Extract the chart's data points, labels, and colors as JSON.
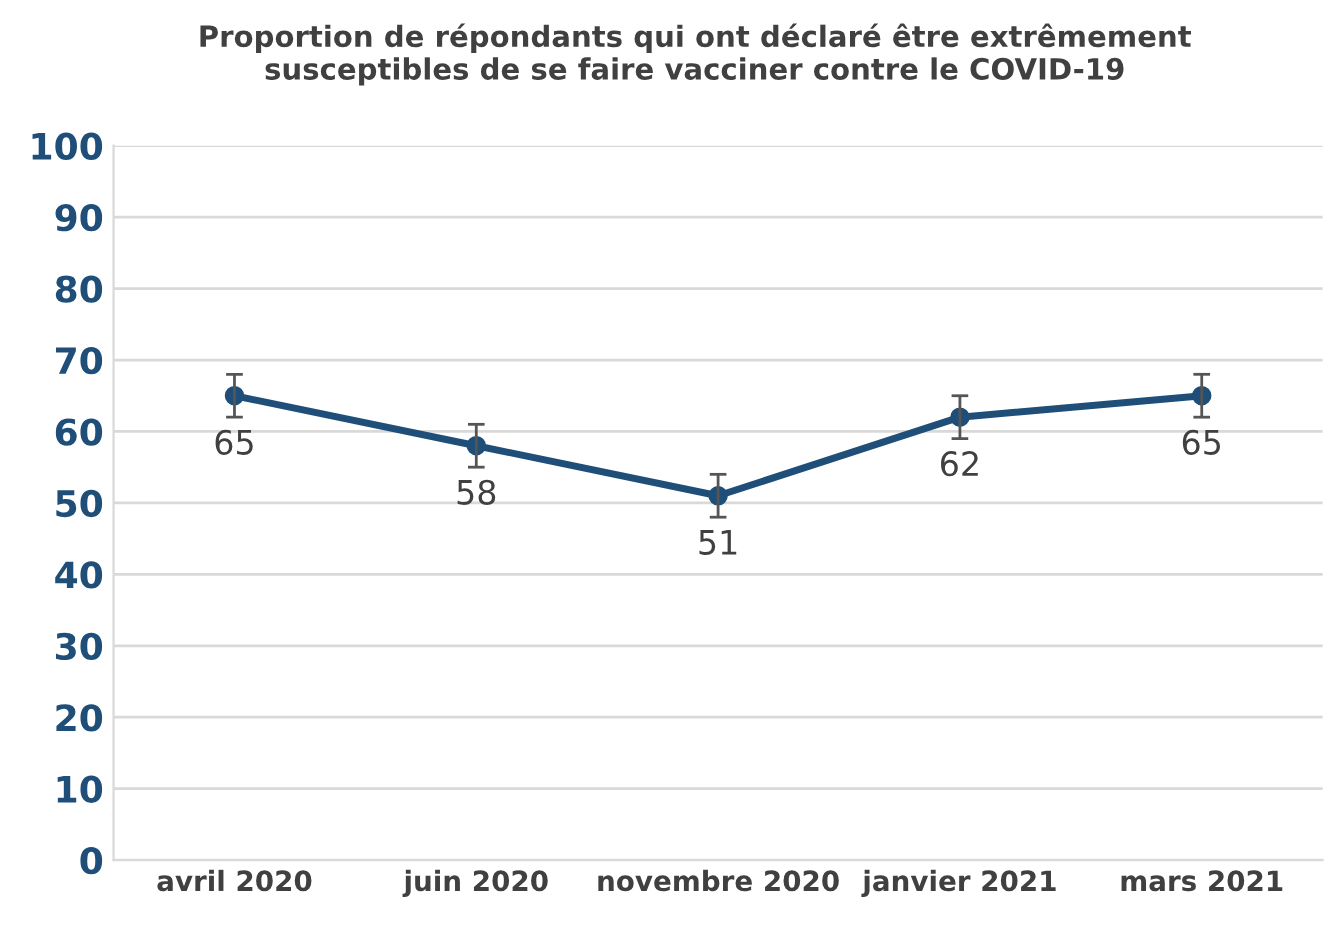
{
  "chart_data": {
    "type": "line",
    "title": "Proportion de répondants qui ont déclaré être extrêmement\nsusceptibles de se faire vacciner contre le COVID-19",
    "categories": [
      "avril 2020",
      "juin 2020",
      "novembre 2020",
      "janvier 2021",
      "mars 2021"
    ],
    "series": [
      {
        "color": "#1f4e79",
        "values": [
          65,
          58,
          51,
          62,
          65
        ],
        "errors": [
          3,
          3,
          3,
          3,
          3
        ]
      }
    ],
    "ylim": [
      0,
      100
    ],
    "yticks": [
      0,
      10,
      20,
      30,
      40,
      50,
      60,
      70,
      80,
      90,
      100
    ],
    "grid": "y",
    "data_labels": true,
    "marker": "circle",
    "line_style": "solid",
    "legend": false
  }
}
